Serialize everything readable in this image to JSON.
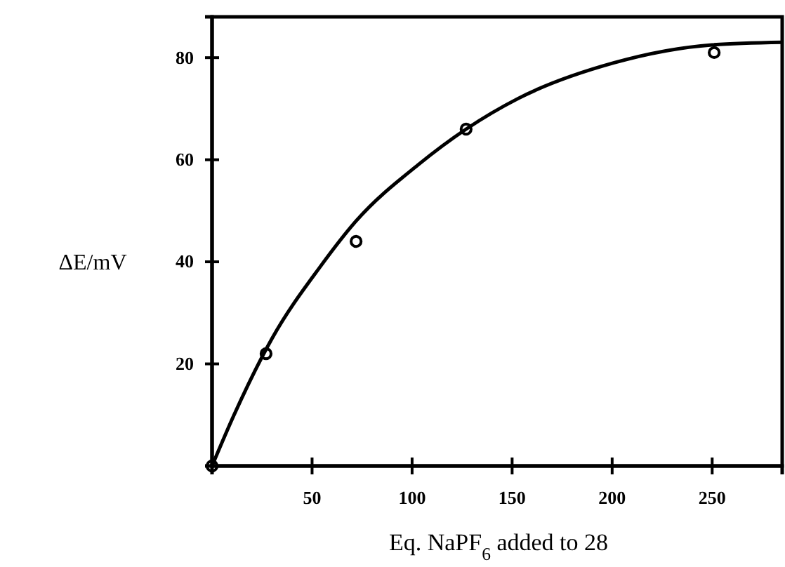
{
  "chart_data": {
    "type": "scatter",
    "xlabel": "Eq. NaPF$_{6}$ added to 28",
    "ylabel": "ΔE/mV",
    "xlim": [
      0,
      285
    ],
    "ylim": [
      0,
      88
    ],
    "xticks": [
      50,
      100,
      150,
      200,
      250
    ],
    "yticks": [
      20,
      40,
      60,
      80
    ],
    "series": [
      {
        "color": "#000000",
        "marker": "circle",
        "x": [
          0,
          27,
          72,
          127,
          251
        ],
        "values": [
          0,
          22,
          44,
          66,
          81
        ]
      },
      {
        "type": "line",
        "color": "#000000",
        "marker": "none",
        "line_style": "solid",
        "x": [
          0,
          11,
          30,
          54,
          72,
          103,
          127,
          153,
          201,
          250,
          285
        ],
        "values": [
          0,
          10,
          25,
          39,
          48,
          59,
          66,
          72,
          79,
          82.5,
          83
        ]
      }
    ]
  }
}
